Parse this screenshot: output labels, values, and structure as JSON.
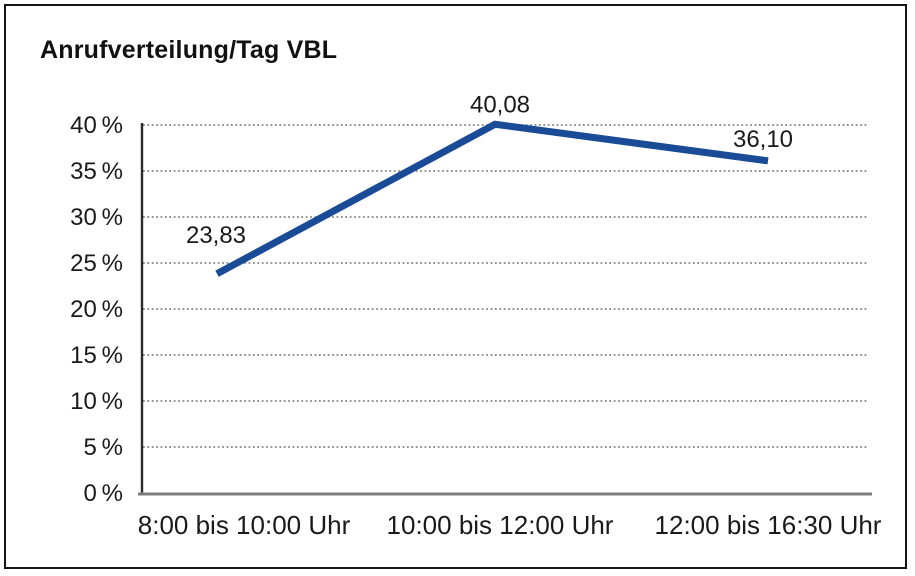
{
  "chart_data": {
    "type": "line",
    "title": "Anrufverteilung/Tag VBL",
    "categories": [
      "8:00 bis 10:00 Uhr",
      "10:00 bis 12:00 Uhr",
      "12:00 bis 16:30 Uhr"
    ],
    "values": [
      23.83,
      40.08,
      36.1
    ],
    "point_labels": [
      "23,83",
      "40,08",
      "36,10"
    ],
    "y_ticks": [
      "0 %",
      "5 %",
      "10 %",
      "15 %",
      "20 %",
      "25 %",
      "30 %",
      "35 %",
      "40 %"
    ],
    "y_tick_values": [
      0,
      5,
      10,
      15,
      20,
      25,
      30,
      35,
      40
    ],
    "ylim": [
      0,
      40
    ],
    "xlabel": "",
    "ylabel": "",
    "grid": "horizontal-dotted",
    "legend": "none",
    "line_color": "#1a4b96",
    "y_axis_color": "#2b2b2b",
    "x_axis_color": "#7d7d7d",
    "grid_color": "#7f7f7f",
    "text_color": "#1a1a1a",
    "frame_color": "#141414"
  }
}
